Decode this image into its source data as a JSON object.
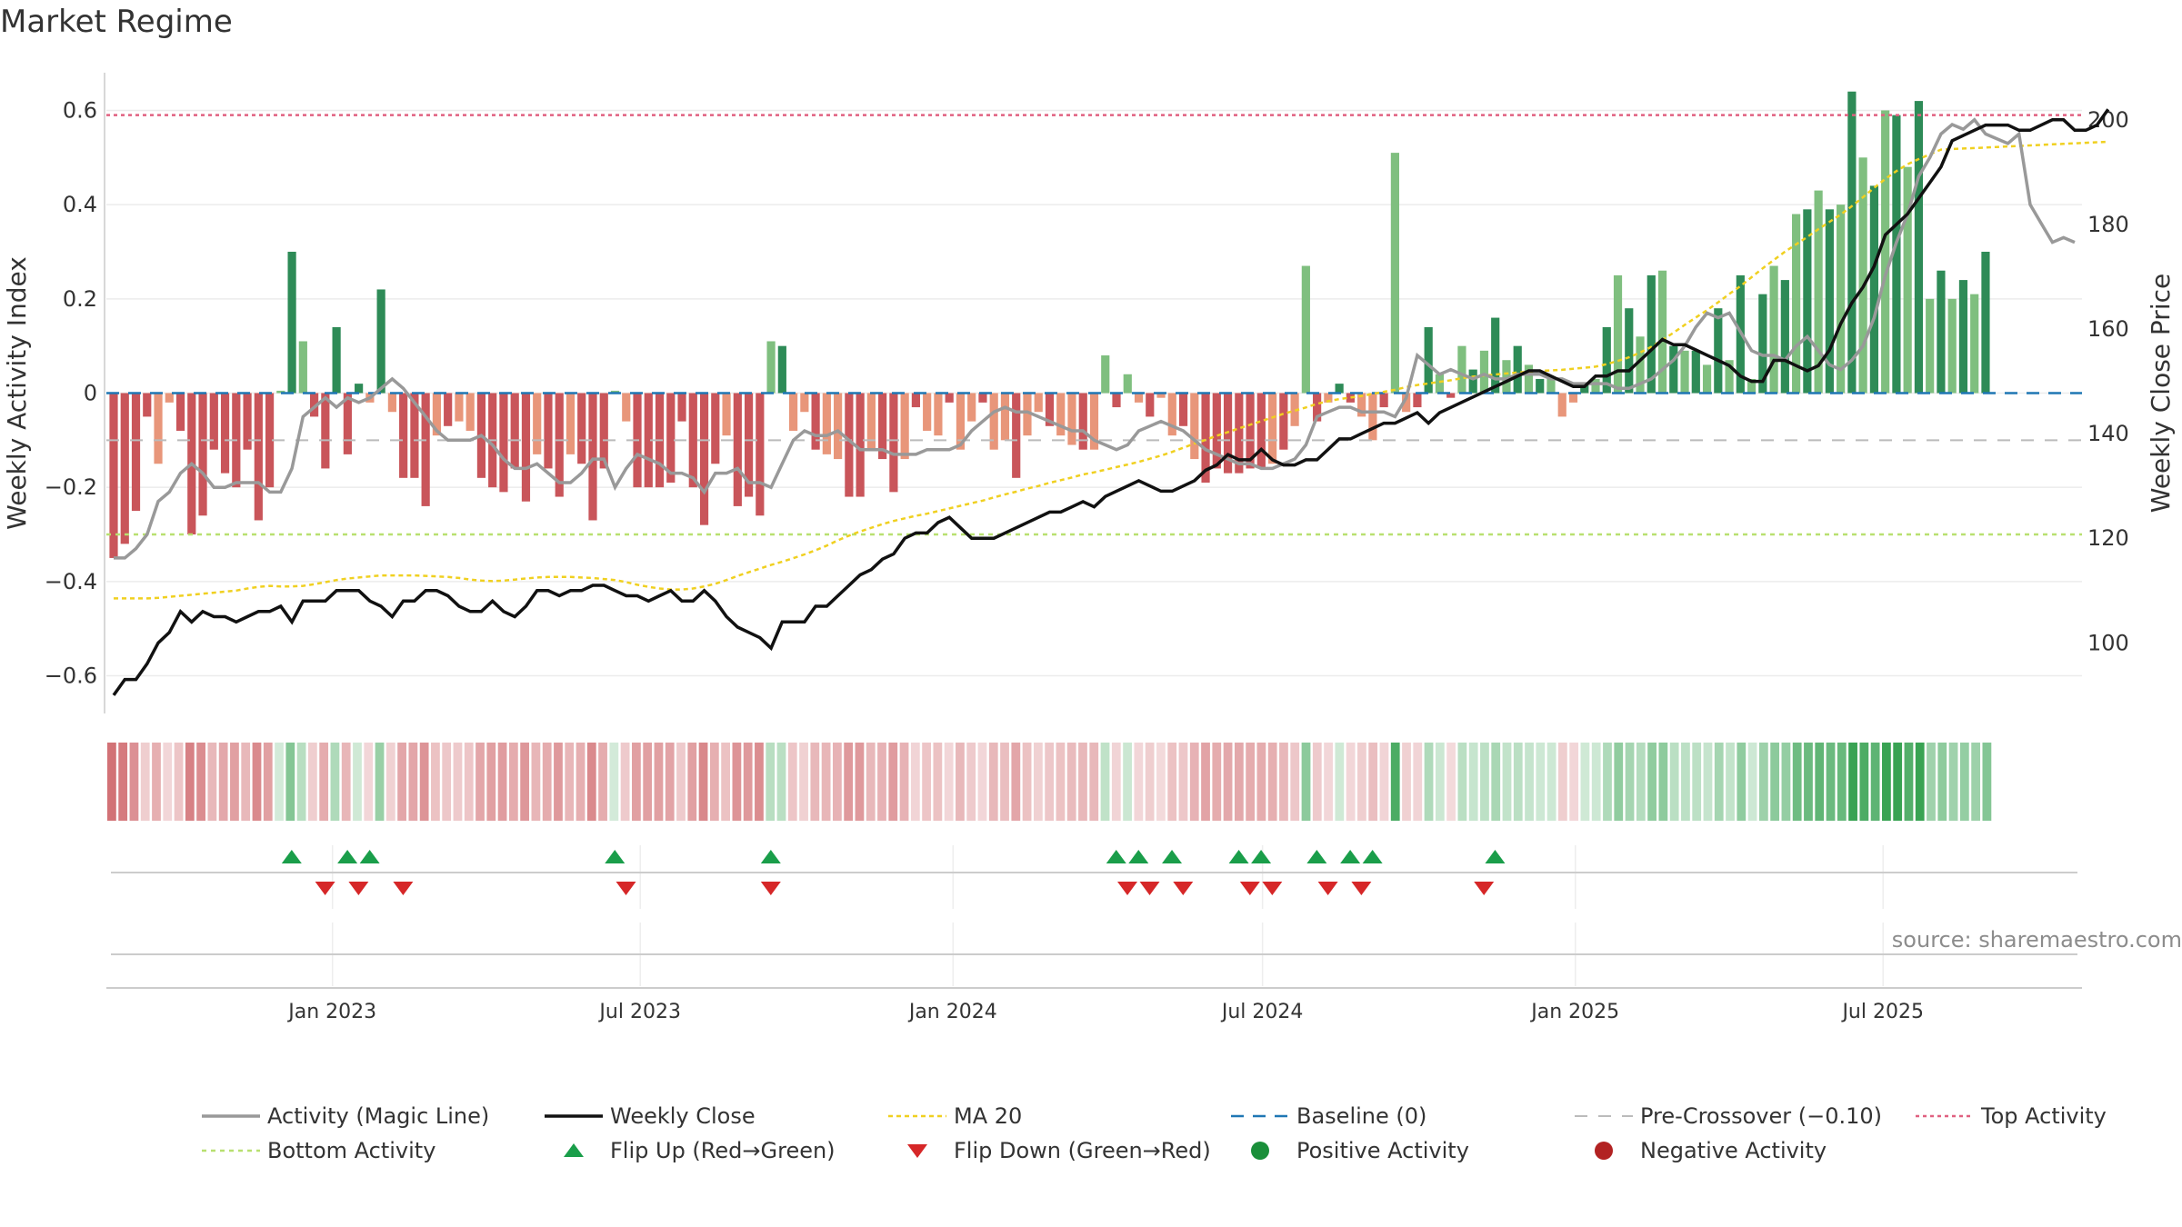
{
  "title": "Market Regime",
  "source": "source: sharemaestro.com",
  "colors": {
    "dark_green": "#2e8b57",
    "light_green": "#7fbf7f",
    "dark_red": "#c9555a",
    "light_red": "#e8967a",
    "magic_line": "#999999",
    "close": "#111111",
    "ma20": "#f0d020",
    "baseline": "#1f77b4",
    "pre_crossover": "#bbbbbb",
    "top": "#e06080",
    "bottom": "#b8e070",
    "flip_up": "#1a9e4a",
    "flip_down": "#d62728",
    "positive": "#1a8f3a",
    "negative": "#b22222"
  },
  "legend": [
    {
      "key": "magic",
      "label": "Activity (Magic Line)"
    },
    {
      "key": "close",
      "label": "Weekly Close"
    },
    {
      "key": "ma20",
      "label": "MA 20"
    },
    {
      "key": "baseline",
      "label": "Baseline (0)"
    },
    {
      "key": "pre",
      "label": "Pre-Crossover (−0.10)"
    },
    {
      "key": "top",
      "label": "Top Activity"
    },
    {
      "key": "bottom",
      "label": "Bottom Activity"
    },
    {
      "key": "flipup",
      "label": "Flip Up (Red→Green)"
    },
    {
      "key": "flipdown",
      "label": "Flip Down (Green→Red)"
    },
    {
      "key": "positive",
      "label": "Positive Activity"
    },
    {
      "key": "negative",
      "label": "Negative Activity"
    }
  ],
  "chart_data": {
    "type": "bar",
    "title": "Market Regime",
    "ylabel": "Weekly Activity Index",
    "ylabel_right": "Weekly Close Price",
    "ylim": [
      -0.68,
      0.68
    ],
    "ylim_right": [
      86.5,
      209
    ],
    "y_ticks": [
      -0.6,
      -0.4,
      -0.2,
      0,
      0.2,
      0.4,
      0.6
    ],
    "y_tick_labels": [
      "−0.6",
      "−0.4",
      "−0.2",
      "0",
      "0.2",
      "0.4",
      "0.6"
    ],
    "y_right_ticks": [
      100,
      120,
      140,
      160,
      180,
      200
    ],
    "y_right_tick_labels": [
      "100",
      "120",
      "140",
      "160",
      "180",
      "200"
    ],
    "x_start": "2022-08-21",
    "x_end": "2025-10-26",
    "x_ticks": [
      "2023-01-01",
      "2023-07-01",
      "2024-01-01",
      "2024-07-01",
      "2025-01-01",
      "2025-07-01"
    ],
    "x_tick_labels": [
      "Jan 2023",
      "Jul 2023",
      "Jan 2024",
      "Jul 2024",
      "Jan 2025",
      "Jul 2025"
    ],
    "top_activity": 0.59,
    "bottom_activity": -0.3,
    "pre_crossover": -0.1,
    "baseline": 0,
    "grid": true,
    "legend_position": "bottom",
    "series": [
      {
        "name": "Activity (Magic Line)",
        "type": "line",
        "values": [
          -0.35,
          -0.35,
          -0.33,
          -0.3,
          -0.23,
          -0.21,
          -0.17,
          -0.15,
          -0.17,
          -0.2,
          -0.2,
          -0.19,
          -0.19,
          -0.19,
          -0.21,
          -0.21,
          -0.16,
          -0.05,
          -0.03,
          -0.01,
          -0.03,
          -0.01,
          -0.02,
          -0.01,
          0.01,
          0.03,
          0.01,
          -0.02,
          -0.05,
          -0.08,
          -0.1,
          -0.1,
          -0.1,
          -0.09,
          -0.11,
          -0.14,
          -0.16,
          -0.16,
          -0.15,
          -0.17,
          -0.19,
          -0.19,
          -0.17,
          -0.14,
          -0.14,
          -0.2,
          -0.16,
          -0.13,
          -0.14,
          -0.15,
          -0.17,
          -0.17,
          -0.18,
          -0.21,
          -0.17,
          -0.17,
          -0.16,
          -0.19,
          -0.19,
          -0.2,
          -0.15,
          -0.1,
          -0.08,
          -0.09,
          -0.09,
          -0.08,
          -0.1,
          -0.12,
          -0.12,
          -0.12,
          -0.13,
          -0.13,
          -0.13,
          -0.12,
          -0.12,
          -0.12,
          -0.11,
          -0.08,
          -0.06,
          -0.04,
          -0.03,
          -0.04,
          -0.04,
          -0.05,
          -0.06,
          -0.07,
          -0.08,
          -0.08,
          -0.1,
          -0.11,
          -0.12,
          -0.11,
          -0.08,
          -0.07,
          -0.06,
          -0.07,
          -0.08,
          -0.1,
          -0.12,
          -0.13,
          -0.14,
          -0.15,
          -0.15,
          -0.16,
          -0.16,
          -0.15,
          -0.14,
          -0.11,
          -0.05,
          -0.04,
          -0.03,
          -0.03,
          -0.04,
          -0.04,
          -0.04,
          -0.05,
          -0.01,
          0.08,
          0.06,
          0.04,
          0.05,
          0.04,
          0.03,
          0.04,
          0.03,
          0.03,
          0.04,
          0.04,
          0.04,
          0.03,
          0.03,
          0.02,
          0.02,
          0.02,
          0.02,
          0.01,
          0.01,
          0.02,
          0.03,
          0.05,
          0.07,
          0.1,
          0.14,
          0.17,
          0.16,
          0.17,
          0.13,
          0.09,
          0.08,
          0.08,
          0.07,
          0.1,
          0.12,
          0.09,
          0.06,
          0.05,
          0.07,
          0.1,
          0.16,
          0.25,
          0.32,
          0.38,
          0.46,
          0.5,
          0.55,
          0.57,
          0.56,
          0.58,
          0.55,
          0.54,
          0.53,
          0.55,
          0.4,
          0.36,
          0.32,
          0.33,
          0.32
        ]
      },
      {
        "name": "Weekly Close",
        "type": "line",
        "values": [
          90,
          93,
          93,
          96,
          100,
          102,
          106,
          104,
          106,
          105,
          105,
          104,
          105,
          106,
          106,
          107,
          104,
          108,
          108,
          108,
          110,
          110,
          110,
          108,
          107,
          105,
          108,
          108,
          110,
          110,
          109,
          107,
          106,
          106,
          108,
          106,
          105,
          107,
          110,
          110,
          109,
          110,
          110,
          111,
          111,
          110,
          109,
          109,
          108,
          109,
          110,
          108,
          108,
          110,
          108,
          105,
          103,
          102,
          101,
          99,
          104,
          104,
          104,
          107,
          107,
          109,
          111,
          113,
          114,
          116,
          117,
          120,
          121,
          121,
          123,
          124,
          122,
          120,
          120,
          120,
          121,
          122,
          123,
          124,
          125,
          125,
          126,
          127,
          126,
          128,
          129,
          130,
          131,
          130,
          129,
          129,
          130,
          131,
          133,
          134,
          136,
          135,
          135,
          137,
          135,
          134,
          134,
          135,
          135,
          137,
          139,
          139,
          140,
          141,
          142,
          142,
          143,
          144,
          142,
          144,
          145,
          146,
          147,
          148,
          149,
          150,
          151,
          152,
          152,
          151,
          150,
          149,
          149,
          151,
          151,
          152,
          152,
          154,
          156,
          158,
          157,
          157,
          156,
          155,
          154,
          153,
          151,
          150,
          150,
          154,
          154,
          153,
          152,
          153,
          156,
          161,
          165,
          168,
          172,
          178,
          180,
          182,
          185,
          188,
          191,
          196,
          197,
          198,
          199,
          199,
          199,
          198,
          198,
          199,
          200,
          200,
          198,
          198,
          199,
          202
        ]
      },
      {
        "name": "MA 20",
        "type": "line",
        "values": [
          108.5,
          108.5,
          108.5,
          108.5,
          108.6,
          108.8,
          109,
          109.2,
          109.4,
          109.6,
          109.8,
          110.0,
          110.4,
          110.7,
          110.9,
          110.8,
          110.8,
          110.9,
          111.2,
          111.6,
          112.0,
          112.3,
          112.5,
          112.7,
          112.9,
          112.9,
          112.9,
          112.9,
          112.8,
          112.7,
          112.6,
          112.4,
          112.1,
          111.9,
          111.8,
          111.9,
          112.1,
          112.3,
          112.5,
          112.6,
          112.6,
          112.6,
          112.5,
          112.4,
          112.2,
          112.0,
          111.6,
          111.1,
          110.7,
          110.4,
          110.2,
          110.2,
          110.4,
          110.8,
          111.3,
          112.0,
          112.8,
          113.5,
          114.2,
          114.9,
          115.5,
          116.2,
          116.9,
          117.7,
          118.6,
          119.6,
          120.5,
          121.3,
          122.0,
          122.7,
          123.3,
          123.8,
          124.3,
          124.7,
          125.2,
          125.7,
          126.2,
          126.7,
          127.2,
          127.8,
          128.4,
          128.9,
          129.5,
          130.0,
          130.6,
          131.1,
          131.6,
          132.2,
          132.6,
          133.1,
          133.6,
          134.1,
          134.6,
          135.2,
          135.8,
          136.5,
          137.3,
          138.1,
          138.8,
          139.6,
          140.3,
          141.0,
          141.7,
          142.4,
          143.1,
          143.8,
          144.4,
          145.0,
          145.7,
          146.2,
          146.6,
          146.9,
          147.2,
          147.6,
          148.0,
          148.4,
          148.9,
          149.3,
          149.6,
          149.9,
          150.2,
          150.6,
          150.9,
          151.1,
          151.3,
          151.5,
          151.7,
          151.8,
          152.0,
          152.1,
          152.2,
          152.4,
          152.6,
          152.8,
          153.3,
          153.9,
          154.6,
          155.5,
          156.6,
          157.9,
          159.3,
          160.8,
          162.2,
          163.6,
          165.1,
          166.7,
          168.2,
          169.9,
          171.6,
          173.2,
          174.8,
          176.2,
          177.6,
          179.1,
          180.5,
          181.9,
          183.5,
          185.2,
          187.0,
          188.7,
          190.2,
          191.5,
          192.5,
          193.4,
          194.3,
          194.4,
          194.5,
          194.6,
          194.7,
          194.8,
          194.9,
          195.0,
          195.1,
          195.2,
          195.3,
          195.4,
          195.5,
          195.6,
          195.7,
          195.8
        ]
      },
      {
        "name": "Weekly Activity Index",
        "type": "bar",
        "values": [
          -0.35,
          -0.32,
          -0.25,
          -0.05,
          -0.15,
          -0.02,
          -0.08,
          -0.3,
          -0.26,
          -0.12,
          -0.17,
          -0.2,
          -0.12,
          -0.27,
          -0.2,
          0.005,
          0.3,
          0.11,
          -0.05,
          -0.16,
          0.14,
          -0.13,
          0.02,
          -0.02,
          0.22,
          -0.04,
          -0.18,
          -0.18,
          -0.24,
          -0.09,
          -0.07,
          -0.06,
          -0.08,
          -0.18,
          -0.2,
          -0.21,
          -0.16,
          -0.23,
          -0.13,
          -0.16,
          -0.22,
          -0.13,
          -0.15,
          -0.27,
          -0.16,
          0.005,
          -0.06,
          -0.2,
          -0.2,
          -0.2,
          -0.19,
          -0.06,
          -0.2,
          -0.28,
          -0.15,
          -0.09,
          -0.24,
          -0.22,
          -0.26,
          0.11,
          0.1,
          -0.08,
          -0.04,
          -0.12,
          -0.13,
          -0.14,
          -0.22,
          -0.22,
          -0.12,
          -0.14,
          -0.21,
          -0.14,
          -0.03,
          -0.08,
          -0.09,
          -0.02,
          -0.12,
          -0.06,
          -0.02,
          -0.12,
          -0.1,
          -0.18,
          -0.09,
          -0.04,
          -0.07,
          -0.09,
          -0.11,
          -0.12,
          -0.12,
          0.08,
          -0.03,
          0.04,
          -0.02,
          -0.05,
          -0.01,
          -0.09,
          -0.07,
          -0.14,
          -0.19,
          -0.16,
          -0.17,
          -0.17,
          -0.16,
          -0.16,
          -0.15,
          -0.12,
          -0.07,
          0.27,
          -0.06,
          -0.02,
          0.02,
          -0.02,
          -0.05,
          -0.1,
          -0.03,
          0.51,
          -0.04,
          -0.03,
          0.14,
          0.04,
          -0.01,
          0.1,
          0.05,
          0.09,
          0.16,
          0.07,
          0.1,
          0.06,
          0.03,
          0.03,
          -0.05,
          -0.02,
          0.02,
          0.03,
          0.14,
          0.25,
          0.18,
          0.12,
          0.25,
          0.26,
          0.1,
          0.09,
          0.09,
          0.06,
          0.18,
          0.07,
          0.25,
          0.03,
          0.21,
          0.27,
          0.24,
          0.38,
          0.39,
          0.43,
          0.39,
          0.4,
          0.64,
          0.5,
          0.44,
          0.6,
          0.59,
          0.48,
          0.62,
          0.2,
          0.26,
          0.2,
          0.24,
          0.21,
          0.3
        ]
      },
      {
        "name": "Regime",
        "type": "heatmap",
        "values": [
          -0.35,
          -0.32,
          -0.25,
          -0.05,
          -0.15,
          -0.02,
          -0.08,
          -0.3,
          -0.26,
          -0.12,
          -0.17,
          -0.2,
          -0.12,
          -0.27,
          -0.2,
          0.005,
          0.3,
          0.11,
          -0.05,
          -0.16,
          0.14,
          -0.13,
          0.02,
          -0.02,
          0.22,
          -0.04,
          -0.18,
          -0.18,
          -0.24,
          -0.09,
          -0.07,
          -0.06,
          -0.08,
          -0.18,
          -0.2,
          -0.21,
          -0.16,
          -0.23,
          -0.13,
          -0.16,
          -0.22,
          -0.13,
          -0.15,
          -0.27,
          -0.16,
          0.005,
          -0.06,
          -0.2,
          -0.2,
          -0.2,
          -0.19,
          -0.06,
          -0.2,
          -0.28,
          -0.15,
          -0.09,
          -0.24,
          -0.22,
          -0.26,
          0.11,
          0.1,
          -0.08,
          -0.04,
          -0.12,
          -0.13,
          -0.14,
          -0.22,
          -0.22,
          -0.12,
          -0.14,
          -0.21,
          -0.14,
          -0.03,
          -0.08,
          -0.09,
          -0.02,
          -0.12,
          -0.06,
          -0.02,
          -0.12,
          -0.1,
          -0.18,
          -0.09,
          -0.04,
          -0.07,
          -0.09,
          -0.11,
          -0.12,
          -0.12,
          0.08,
          -0.03,
          0.04,
          -0.02,
          -0.05,
          -0.01,
          -0.09,
          -0.07,
          -0.14,
          -0.19,
          -0.16,
          -0.17,
          -0.17,
          -0.16,
          -0.16,
          -0.15,
          -0.12,
          -0.07,
          0.27,
          -0.06,
          -0.02,
          0.02,
          -0.02,
          -0.05,
          -0.1,
          -0.03,
          0.51,
          -0.04,
          -0.03,
          0.14,
          0.04,
          -0.01,
          0.1,
          0.05,
          0.09,
          0.16,
          0.07,
          0.1,
          0.06,
          0.03,
          0.03,
          -0.05,
          -0.02,
          0.02,
          0.03,
          0.14,
          0.25,
          0.18,
          0.12,
          0.25,
          0.26,
          0.1,
          0.09,
          0.09,
          0.06,
          0.18,
          0.07,
          0.25,
          0.03,
          0.21,
          0.27,
          0.24,
          0.38,
          0.39,
          0.43,
          0.39,
          0.4,
          0.64,
          0.5,
          0.44,
          0.6,
          0.59,
          0.48,
          0.62,
          0.2,
          0.26,
          0.2,
          0.24,
          0.21,
          0.3
        ]
      }
    ],
    "flip_up_weeks": [
      15,
      20,
      22,
      44,
      58,
      89,
      91,
      94,
      100,
      102,
      107,
      110,
      112,
      123
    ],
    "flip_down_weeks": [
      18,
      21,
      25,
      45,
      58,
      90,
      92,
      95,
      101,
      103,
      108,
      111,
      122
    ]
  }
}
